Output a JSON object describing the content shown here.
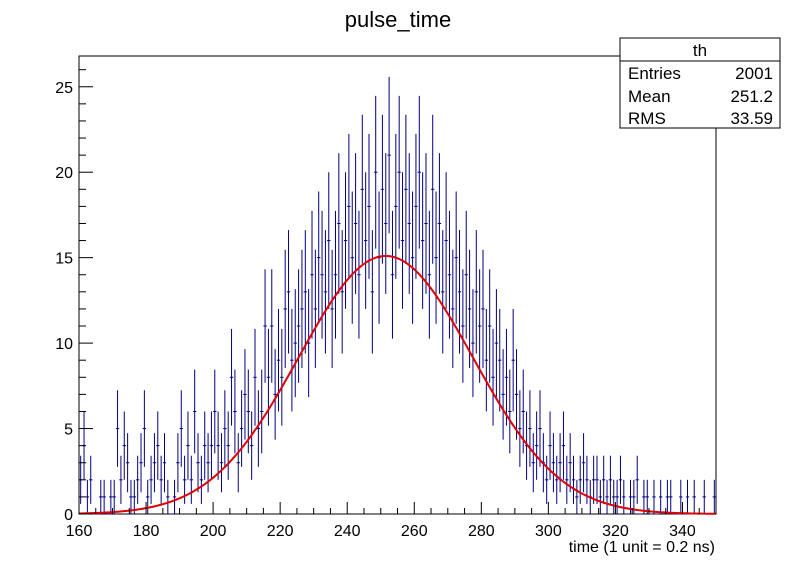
{
  "chart_data": {
    "type": "histogram",
    "title": "pulse_time",
    "xlabel": "time (1 unit = 0.2 ns)",
    "ylabel": "",
    "xlim": [
      160,
      350
    ],
    "ylim": [
      0,
      26.8
    ],
    "xticks": [
      160,
      180,
      200,
      220,
      240,
      260,
      280,
      300,
      320,
      340
    ],
    "yticks": [
      0,
      5,
      10,
      15,
      20,
      25
    ],
    "grid": false,
    "bin_width": 1,
    "stats_box": {
      "name": "th",
      "rows": [
        {
          "label": "Entries",
          "value": "2001"
        },
        {
          "label": "Mean",
          "value": "251.2"
        },
        {
          "label": "RMS",
          "value": "33.59"
        }
      ]
    },
    "fit": {
      "type": "gaussian",
      "constant": 15.1,
      "mean": 251.5,
      "sigma": 26.0,
      "color": "#e00000"
    },
    "series": [
      {
        "color": "#000080",
        "x": [
          160.5,
          161.5,
          162.5,
          163.5,
          164.5,
          165.5,
          166.5,
          167.5,
          168.5,
          169.5,
          170.5,
          171.5,
          172.5,
          173.5,
          174.5,
          175.5,
          176.5,
          177.5,
          178.5,
          179.5,
          180.5,
          181.5,
          182.5,
          183.5,
          184.5,
          185.5,
          186.5,
          187.5,
          188.5,
          189.5,
          190.5,
          191.5,
          192.5,
          193.5,
          194.5,
          195.5,
          196.5,
          197.5,
          198.5,
          199.5,
          200.5,
          201.5,
          202.5,
          203.5,
          204.5,
          205.5,
          206.5,
          207.5,
          208.5,
          209.5,
          210.5,
          211.5,
          212.5,
          213.5,
          214.5,
          215.5,
          216.5,
          217.5,
          218.5,
          219.5,
          220.5,
          221.5,
          222.5,
          223.5,
          224.5,
          225.5,
          226.5,
          227.5,
          228.5,
          229.5,
          230.5,
          231.5,
          232.5,
          233.5,
          234.5,
          235.5,
          236.5,
          237.5,
          238.5,
          239.5,
          240.5,
          241.5,
          242.5,
          243.5,
          244.5,
          245.5,
          246.5,
          247.5,
          248.5,
          249.5,
          250.5,
          251.5,
          252.5,
          253.5,
          254.5,
          255.5,
          256.5,
          257.5,
          258.5,
          259.5,
          260.5,
          261.5,
          262.5,
          263.5,
          264.5,
          265.5,
          266.5,
          267.5,
          268.5,
          269.5,
          270.5,
          271.5,
          272.5,
          273.5,
          274.5,
          275.5,
          276.5,
          277.5,
          278.5,
          279.5,
          280.5,
          281.5,
          282.5,
          283.5,
          284.5,
          285.5,
          286.5,
          287.5,
          288.5,
          289.5,
          290.5,
          291.5,
          292.5,
          293.5,
          294.5,
          295.5,
          296.5,
          297.5,
          298.5,
          299.5,
          300.5,
          301.5,
          302.5,
          303.5,
          304.5,
          305.5,
          306.5,
          307.5,
          308.5,
          309.5,
          310.5,
          311.5,
          312.5,
          313.5,
          314.5,
          315.5,
          316.5,
          317.5,
          318.5,
          319.5,
          320.5,
          321.5,
          322.5,
          323.5,
          324.5,
          325.5,
          326.5,
          327.5,
          328.5,
          329.5,
          330.5,
          331.5,
          332.5,
          333.5,
          334.5,
          335.5,
          336.5,
          337.5,
          338.5,
          339.5,
          340.5,
          341.5,
          342.5,
          343.5,
          344.5,
          345.5,
          346.5,
          347.5,
          348.5,
          349.5
        ],
        "values": [
          2,
          4,
          1,
          2,
          0,
          0,
          1,
          1,
          0,
          1,
          1,
          5,
          2,
          4,
          3,
          1,
          1,
          2,
          3,
          5,
          1,
          2,
          3,
          4,
          2,
          3,
          1,
          0,
          1,
          3,
          5,
          2,
          4,
          2,
          6,
          3,
          2,
          4,
          3,
          4,
          6,
          4,
          3,
          5,
          4,
          8,
          6,
          3,
          5,
          7,
          6,
          4,
          8,
          5,
          6,
          11,
          8,
          11,
          7,
          9,
          8,
          12,
          13,
          9,
          10,
          11,
          12,
          13,
          10,
          14,
          12,
          15,
          14,
          13,
          16,
          12,
          14,
          17,
          13,
          16,
          18,
          15,
          17,
          14,
          19,
          16,
          18,
          13,
          20,
          15,
          19,
          17,
          21,
          14,
          18,
          20,
          16,
          19,
          17,
          15,
          18,
          20,
          16,
          17,
          14,
          19,
          15,
          17,
          13,
          16,
          14,
          12,
          15,
          13,
          11,
          14,
          12,
          10,
          13,
          11,
          12,
          9,
          11,
          8,
          10,
          9,
          7,
          8,
          6,
          9,
          7,
          5,
          6,
          4,
          5,
          3,
          4,
          5,
          3,
          2,
          4,
          3,
          2,
          3,
          4,
          2,
          3,
          2,
          1,
          2,
          3,
          2,
          1,
          2,
          2,
          1,
          2,
          1,
          2,
          1,
          1,
          2,
          1,
          0,
          1,
          1,
          2,
          0,
          1,
          1,
          0,
          1,
          0,
          1,
          0,
          1,
          1,
          0,
          0,
          1,
          0,
          1,
          0,
          1,
          0,
          0,
          1,
          0,
          0,
          1
        ],
        "errors": [
          1.41,
          2.0,
          1.0,
          1.41,
          0,
          0,
          1.0,
          1.0,
          0,
          1.0,
          1.0,
          2.24,
          1.41,
          2.0,
          1.73,
          1.0,
          1.0,
          1.41,
          1.73,
          2.24,
          1.0,
          1.41,
          1.73,
          2.0,
          1.41,
          1.73,
          1.0,
          0,
          1.0,
          1.73,
          2.24,
          1.41,
          2.0,
          1.41,
          2.45,
          1.73,
          1.41,
          2.0,
          1.73,
          2.0,
          2.45,
          2.0,
          1.73,
          2.24,
          2.0,
          2.83,
          2.45,
          1.73,
          2.24,
          2.65,
          2.45,
          2.0,
          2.83,
          2.24,
          2.45,
          3.32,
          2.83,
          3.32,
          2.65,
          3.0,
          2.83,
          3.46,
          3.61,
          3.0,
          3.16,
          3.32,
          3.46,
          3.61,
          3.16,
          3.74,
          3.46,
          3.87,
          3.74,
          3.61,
          4.0,
          3.46,
          3.74,
          4.12,
          3.61,
          4.0,
          4.24,
          3.87,
          4.12,
          3.74,
          4.36,
          4.0,
          4.24,
          3.61,
          4.47,
          3.87,
          4.36,
          4.12,
          4.58,
          3.74,
          4.24,
          4.47,
          4.0,
          4.36,
          4.12,
          3.87,
          4.24,
          4.47,
          4.0,
          4.12,
          3.74,
          4.36,
          3.87,
          4.12,
          3.61,
          4.0,
          3.74,
          3.46,
          3.87,
          3.61,
          3.32,
          3.74,
          3.46,
          3.16,
          3.61,
          3.32,
          3.46,
          3.0,
          3.32,
          2.83,
          3.16,
          3.0,
          2.65,
          2.83,
          2.45,
          3.0,
          2.65,
          2.24,
          2.45,
          2.0,
          2.24,
          1.73,
          2.0,
          2.24,
          1.73,
          1.41,
          2.0,
          1.73,
          1.41,
          1.73,
          2.0,
          1.41,
          1.73,
          1.41,
          1.0,
          1.41,
          1.73,
          1.41,
          1.0,
          1.41,
          1.41,
          1.0,
          1.41,
          1.0,
          1.41,
          1.0,
          1.0,
          1.41,
          1.0,
          0,
          1.0,
          1.0,
          1.41,
          0,
          1.0,
          1.0,
          0,
          1.0,
          0,
          1.0,
          0,
          1.0,
          1.0,
          0,
          0,
          1.0,
          0,
          1.0,
          0,
          1.0,
          0,
          0,
          1.0,
          0,
          0,
          1.0
        ]
      }
    ]
  }
}
